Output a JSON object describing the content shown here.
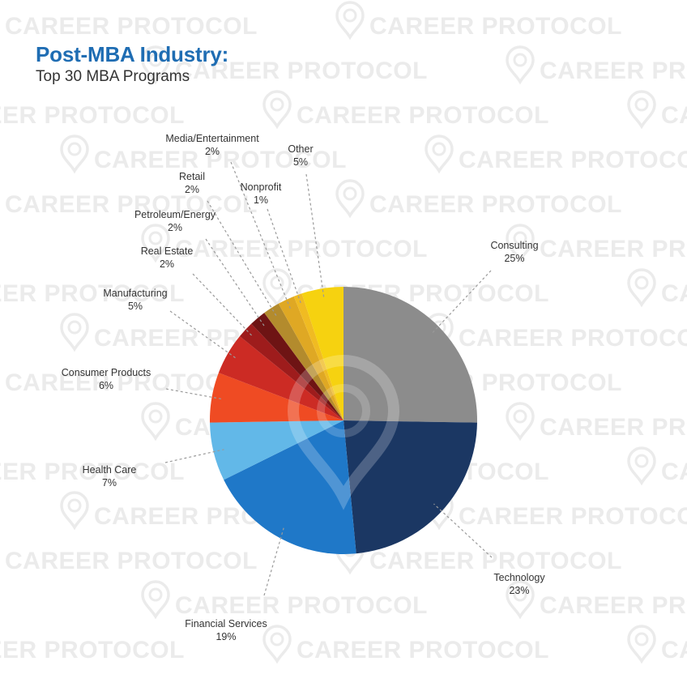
{
  "title": "Post-MBA Industry:",
  "subtitle": "Top 30 MBA Programs",
  "watermark": {
    "text": "CAREER PROTOCOL",
    "color": "#ebebeb"
  },
  "chart_data": {
    "type": "pie",
    "start_angle_deg": 0,
    "direction": "clockwise",
    "slices": [
      {
        "label": "Consulting",
        "value": 25,
        "value_label": "25%",
        "color": "#8c8c8c"
      },
      {
        "label": "Technology",
        "value": 23,
        "value_label": "23%",
        "color": "#1b3763"
      },
      {
        "label": "Financial Services",
        "value": 19,
        "value_label": "19%",
        "color": "#1f78c8"
      },
      {
        "label": "Health Care",
        "value": 7,
        "value_label": "7%",
        "color": "#62b8e8"
      },
      {
        "label": "Consumer Products",
        "value": 6,
        "value_label": "6%",
        "color": "#ef4b23"
      },
      {
        "label": "Manufacturing",
        "value": 5,
        "value_label": "5%",
        "color": "#cc2b24"
      },
      {
        "label": "Real Estate",
        "value": 2,
        "value_label": "2%",
        "color": "#9e1c1c"
      },
      {
        "label": "Petroleum/Energy",
        "value": 2,
        "value_label": "2%",
        "color": "#6e1414"
      },
      {
        "label": "Retail",
        "value": 2,
        "value_label": "2%",
        "color": "#b38b2d"
      },
      {
        "label": "Media/Entertainment",
        "value": 2,
        "value_label": "2%",
        "color": "#dfa824"
      },
      {
        "label": "Nonprofit",
        "value": 1,
        "value_label": "1%",
        "color": "#f0bb22"
      },
      {
        "label": "Other",
        "value": 5,
        "value_label": "5%",
        "color": "#f6d210"
      }
    ]
  }
}
